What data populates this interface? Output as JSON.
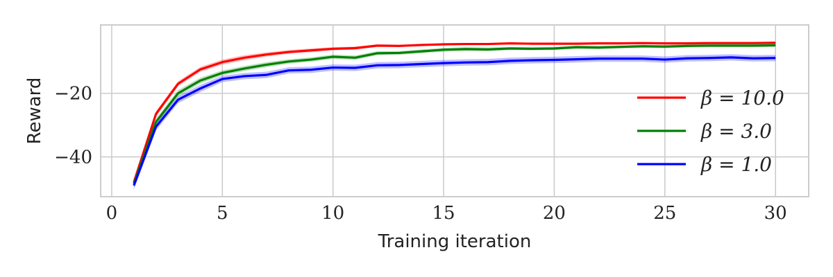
{
  "chart_data": {
    "type": "line",
    "xlabel": "Training iteration",
    "ylabel": "Reward",
    "xlim": [
      -0.5,
      31.5
    ],
    "ylim": [
      -52.5,
      1.5
    ],
    "xticks": [
      0,
      5,
      10,
      15,
      20,
      25,
      30
    ],
    "xtick_labels": [
      "0",
      "5",
      "10",
      "15",
      "20",
      "25",
      "30"
    ],
    "yticks": [
      -20,
      -40
    ],
    "ytick_labels": [
      "−20",
      "−40"
    ],
    "grid": true,
    "legend_position": "center-right",
    "x": [
      1,
      2,
      3,
      4,
      5,
      6,
      7,
      8,
      9,
      10,
      11,
      12,
      13,
      14,
      15,
      16,
      17,
      18,
      19,
      20,
      21,
      22,
      23,
      24,
      25,
      26,
      27,
      28,
      29,
      30
    ],
    "series": [
      {
        "name": "β = 10.0",
        "color": "#ff0000",
        "values": [
          -48,
          -26.5,
          -17,
          -12.5,
          -10.2,
          -8.8,
          -7.8,
          -7.0,
          -6.5,
          -6.0,
          -5.8,
          -5.0,
          -5.1,
          -4.8,
          -4.6,
          -4.5,
          -4.5,
          -4.3,
          -4.4,
          -4.4,
          -4.4,
          -4.3,
          -4.3,
          -4.2,
          -4.3,
          -4.3,
          -4.2,
          -4.2,
          -4.2,
          -4.1
        ],
        "band": [
          0.8,
          0.9,
          0.8,
          0.8,
          0.8,
          0.8,
          0.7,
          0.6,
          0.6,
          0.5,
          0.5,
          0.4,
          0.4,
          0.4,
          0.3,
          0.3,
          0.3,
          0.3,
          0.3,
          0.3,
          0.3,
          0.3,
          0.3,
          0.3,
          0.3,
          0.3,
          0.3,
          0.3,
          0.3,
          0.3
        ]
      },
      {
        "name": "β = 3.0",
        "color": "#008000",
        "values": [
          -48.5,
          -29,
          -20,
          -16,
          -13.6,
          -12.2,
          -11.0,
          -10.0,
          -9.4,
          -8.5,
          -8.8,
          -7.4,
          -7.3,
          -6.8,
          -6.3,
          -6.1,
          -6.2,
          -5.9,
          -6.0,
          -5.9,
          -5.5,
          -5.6,
          -5.4,
          -5.2,
          -5.3,
          -5.1,
          -5.0,
          -5.0,
          -5.0,
          -4.9
        ],
        "band": [
          1.0,
          1.0,
          1.0,
          0.9,
          0.8,
          0.8,
          0.8,
          0.7,
          0.7,
          0.7,
          0.7,
          0.6,
          0.6,
          0.6,
          0.6,
          0.6,
          0.6,
          0.5,
          0.5,
          0.5,
          0.5,
          0.5,
          0.5,
          0.5,
          0.5,
          0.5,
          0.5,
          0.5,
          0.5,
          0.5
        ]
      },
      {
        "name": "β = 1.0",
        "color": "#0000ff",
        "values": [
          -49,
          -30.5,
          -22,
          -18.5,
          -15.5,
          -14.6,
          -14.2,
          -12.8,
          -12.6,
          -11.9,
          -12.0,
          -11.2,
          -11.1,
          -10.8,
          -10.5,
          -10.3,
          -10.2,
          -9.8,
          -9.6,
          -9.5,
          -9.3,
          -9.1,
          -9.1,
          -9.1,
          -9.4,
          -9.0,
          -8.9,
          -8.7,
          -9.0,
          -8.9
        ],
        "band": [
          1.3,
          1.2,
          1.1,
          1.1,
          1.0,
          1.0,
          1.0,
          1.0,
          1.0,
          1.0,
          1.0,
          1.0,
          1.0,
          1.0,
          1.0,
          1.0,
          1.0,
          1.0,
          1.0,
          1.0,
          1.0,
          1.0,
          1.0,
          1.0,
          1.0,
          1.0,
          1.0,
          1.0,
          1.0,
          1.0
        ]
      }
    ]
  }
}
